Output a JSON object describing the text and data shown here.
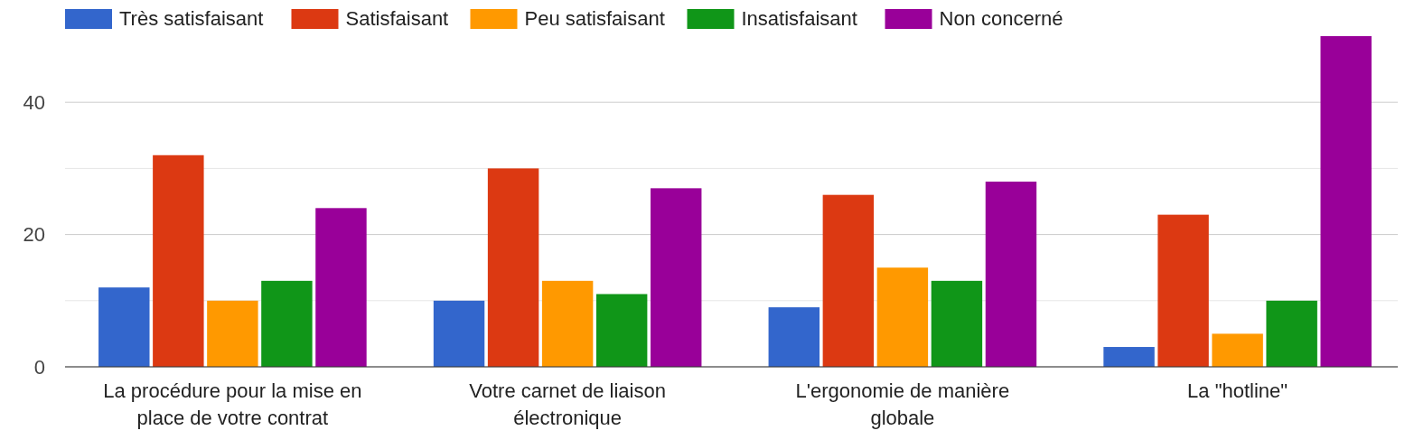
{
  "chart_data": {
    "type": "bar",
    "categories": [
      "La procédure pour la mise en place de votre contrat",
      "Votre carnet de liaison électronique",
      "L'ergonomie de manière globale",
      "La \"hotline\""
    ],
    "series": [
      {
        "name": "Très satisfaisant",
        "color": "#3366cc",
        "values": [
          12,
          10,
          9,
          3
        ]
      },
      {
        "name": "Satisfaisant",
        "color": "#dc3912",
        "values": [
          32,
          30,
          26,
          23
        ]
      },
      {
        "name": "Peu satisfaisant",
        "color": "#ff9900",
        "values": [
          10,
          13,
          15,
          5
        ]
      },
      {
        "name": "Insatisfaisant",
        "color": "#109618",
        "values": [
          13,
          11,
          13,
          10
        ]
      },
      {
        "name": "Non concerné",
        "color": "#990099",
        "values": [
          24,
          27,
          28,
          50
        ]
      }
    ],
    "ylim": [
      0,
      50
    ],
    "yticks": [
      0,
      {
        "value": 10,
        "label": null
      },
      20,
      {
        "value": 30,
        "label": null
      },
      40
    ],
    "grid": true,
    "legend": "top"
  }
}
